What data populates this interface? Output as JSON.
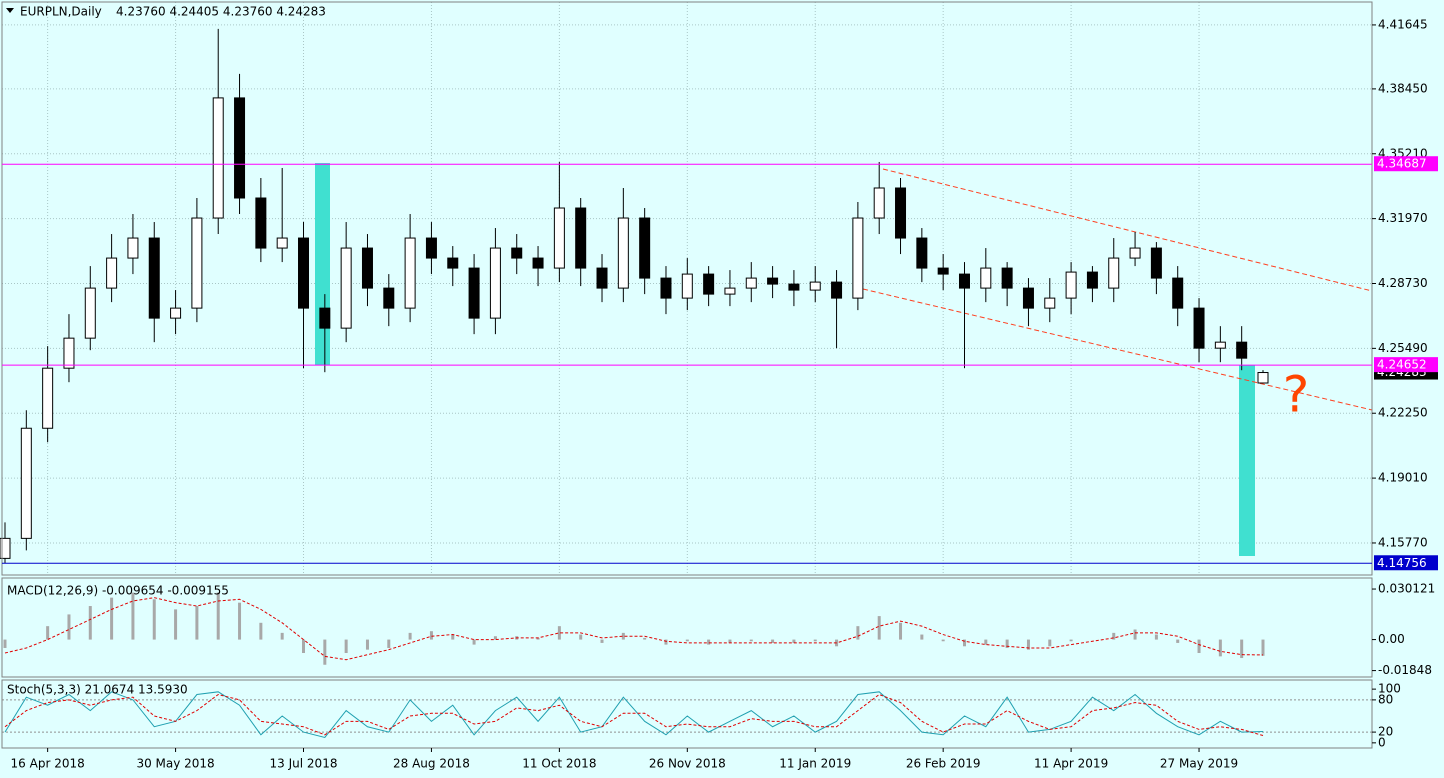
{
  "chart_data": [
    {
      "type": "candlestick",
      "title": "EURPLN,Daily",
      "subtitle": "4.23760 4.24405 4.23760 4.24283",
      "categories": [
        null,
        null,
        "16 Apr 2018",
        null,
        null,
        null,
        null,
        null,
        "30 May 2018",
        null,
        null,
        null,
        null,
        null,
        "13 Jul 2018",
        null,
        null,
        null,
        null,
        null,
        "28 Aug 2018",
        null,
        null,
        null,
        null,
        null,
        "11 Oct 2018",
        null,
        null,
        null,
        null,
        null,
        "26 Nov 2018",
        null,
        null,
        null,
        null,
        null,
        "11 Jan 2019",
        null,
        null,
        null,
        null,
        null,
        "26 Feb 2019",
        null,
        null,
        null,
        null,
        null,
        "11 Apr 2019",
        null,
        null,
        null,
        null,
        null,
        "27 May 2019",
        null,
        null,
        null
      ],
      "open": [
        4.15,
        4.16,
        4.215,
        4.245,
        4.26,
        4.285,
        4.3,
        4.31,
        4.27,
        4.275,
        4.32,
        4.38,
        4.33,
        4.305,
        4.31,
        4.275,
        4.265,
        4.305,
        4.285,
        4.275,
        4.31,
        4.3,
        4.295,
        4.27,
        4.305,
        4.3,
        4.295,
        4.325,
        4.295,
        4.285,
        4.32,
        4.29,
        4.28,
        4.292,
        4.282,
        4.285,
        4.29,
        4.287,
        4.284,
        4.288,
        4.28,
        4.32,
        4.335,
        4.31,
        4.295,
        4.292,
        4.285,
        4.295,
        4.285,
        4.275,
        4.28,
        4.293,
        4.285,
        4.3,
        4.305,
        4.29,
        4.275,
        4.255,
        4.258,
        4.2376
      ],
      "high": [
        4.168,
        4.224,
        4.256,
        4.272,
        4.296,
        4.312,
        4.322,
        4.318,
        4.284,
        4.33,
        4.4145,
        4.392,
        4.34,
        4.345,
        4.318,
        4.282,
        4.318,
        4.312,
        4.292,
        4.322,
        4.318,
        4.306,
        4.302,
        4.315,
        4.312,
        4.306,
        4.348,
        4.33,
        4.302,
        4.335,
        4.325,
        4.296,
        4.3,
        4.296,
        4.294,
        4.298,
        4.296,
        4.294,
        4.296,
        4.294,
        4.328,
        4.348,
        4.34,
        4.315,
        4.302,
        4.298,
        4.305,
        4.298,
        4.29,
        4.29,
        4.298,
        4.296,
        4.31,
        4.313,
        4.308,
        4.296,
        4.28,
        4.266,
        4.266,
        4.24405
      ],
      "low": [
        4.1475,
        4.154,
        4.208,
        4.238,
        4.254,
        4.278,
        4.292,
        4.258,
        4.262,
        4.268,
        4.312,
        4.322,
        4.298,
        4.298,
        4.245,
        4.243,
        4.258,
        4.276,
        4.266,
        4.268,
        4.292,
        4.286,
        4.262,
        4.262,
        4.292,
        4.286,
        4.288,
        4.286,
        4.278,
        4.278,
        4.282,
        4.272,
        4.274,
        4.276,
        4.276,
        4.278,
        4.28,
        4.276,
        4.278,
        4.255,
        4.274,
        4.312,
        4.302,
        4.288,
        4.284,
        4.245,
        4.278,
        4.276,
        4.266,
        4.268,
        4.272,
        4.278,
        4.278,
        4.296,
        4.282,
        4.266,
        4.248,
        4.248,
        4.244,
        4.2376
      ],
      "close": [
        4.16,
        4.215,
        4.245,
        4.26,
        4.285,
        4.3,
        4.31,
        4.27,
        4.275,
        4.32,
        4.38,
        4.33,
        4.305,
        4.31,
        4.275,
        4.265,
        4.305,
        4.285,
        4.275,
        4.31,
        4.3,
        4.295,
        4.27,
        4.305,
        4.3,
        4.295,
        4.325,
        4.295,
        4.285,
        4.32,
        4.29,
        4.28,
        4.292,
        4.282,
        4.285,
        4.29,
        4.287,
        4.284,
        4.288,
        4.28,
        4.32,
        4.335,
        4.31,
        4.295,
        4.292,
        4.285,
        4.295,
        4.285,
        4.275,
        4.28,
        4.293,
        4.285,
        4.3,
        4.305,
        4.29,
        4.275,
        4.255,
        4.258,
        4.25,
        4.24283
      ],
      "ylim": [
        4.1417,
        4.4289
      ],
      "yticks": [
        {
          "value": 4.41645,
          "label": "4.41645"
        },
        {
          "value": 4.3845,
          "label": "4.38450"
        },
        {
          "value": 4.3521,
          "label": "4.35210"
        },
        {
          "value": 4.3197,
          "label": "4.31970"
        },
        {
          "value": 4.2873,
          "label": "4.28730"
        },
        {
          "value": 4.2549,
          "label": "4.25490"
        },
        {
          "value": 4.2225,
          "label": "4.22250"
        },
        {
          "value": 4.1901,
          "label": "4.19010"
        },
        {
          "value": 4.1577,
          "label": "4.15770"
        }
      ],
      "levels": [
        {
          "price": 4.34687,
          "color": "#ff00ff"
        },
        {
          "price": 4.24652,
          "color": "#ff00ff"
        },
        {
          "price": 4.14756,
          "color": "#0000cc"
        }
      ],
      "annotation": "?",
      "grid": true,
      "up_color": "#ffffff",
      "down_color": "#000000"
    },
    {
      "type": "macd",
      "title": "MACD(12,26,9) -0.009654 -0.009155",
      "series": [
        {
          "color": "#a8a8a8",
          "values": [
            -0.005,
            0.0,
            0.008,
            0.015,
            0.02,
            0.025,
            0.028,
            0.024,
            0.018,
            0.02,
            0.028,
            0.022,
            0.01,
            0.004,
            -0.008,
            -0.015,
            -0.008,
            -0.006,
            -0.005,
            0.004,
            0.005,
            0.003,
            -0.003,
            0.002,
            0.002,
            0.001,
            0.008,
            0.003,
            -0.002,
            0.004,
            0.001,
            -0.003,
            -0.001,
            -0.003,
            -0.002,
            -0.001,
            -0.002,
            -0.002,
            -0.001,
            -0.004,
            0.008,
            0.014,
            0.01,
            0.003,
            -0.001,
            -0.004,
            -0.003,
            -0.005,
            -0.006,
            -0.004,
            -0.001,
            0.0,
            0.004,
            0.006,
            0.003,
            -0.002,
            -0.008,
            -0.01,
            -0.011,
            -0.009654
          ]
        },
        {
          "color": "#e00000",
          "values": [
            -0.008,
            -0.005,
            0.0,
            0.006,
            0.012,
            0.018,
            0.023,
            0.025,
            0.022,
            0.02,
            0.023,
            0.024,
            0.018,
            0.01,
            0.0,
            -0.01,
            -0.012,
            -0.009,
            -0.006,
            -0.002,
            0.002,
            0.003,
            0.0,
            0.0,
            0.001,
            0.001,
            0.004,
            0.004,
            0.001,
            0.002,
            0.002,
            -0.001,
            -0.002,
            -0.002,
            -0.002,
            -0.002,
            -0.002,
            -0.002,
            -0.002,
            -0.002,
            0.002,
            0.008,
            0.011,
            0.008,
            0.003,
            -0.001,
            -0.003,
            -0.004,
            -0.005,
            -0.005,
            -0.003,
            -0.001,
            0.001,
            0.004,
            0.004,
            0.002,
            -0.003,
            -0.007,
            -0.009,
            -0.009155
          ]
        }
      ],
      "ylim": [
        -0.0223,
        0.0367
      ],
      "yticks": [
        0.030121,
        {
          "value": 0,
          "label": "0.00"
        },
        -0.01848
      ]
    },
    {
      "type": "stochastic",
      "title": "Stoch(5,3,3) 21.0674 13.5930",
      "series": [
        {
          "color": "#20a0b0",
          "values": [
            20,
            85,
            70,
            90,
            60,
            95,
            80,
            30,
            40,
            90,
            95,
            70,
            15,
            50,
            20,
            10,
            60,
            30,
            20,
            80,
            40,
            70,
            15,
            60,
            85,
            40,
            85,
            20,
            30,
            85,
            40,
            15,
            50,
            20,
            40,
            60,
            30,
            50,
            20,
            40,
            90,
            95,
            60,
            20,
            15,
            50,
            30,
            85,
            20,
            25,
            40,
            85,
            60,
            90,
            55,
            30,
            15,
            40,
            20,
            21.0674
          ]
        },
        {
          "color": "#e00000",
          "values": [
            30,
            60,
            75,
            80,
            70,
            80,
            85,
            50,
            40,
            60,
            90,
            80,
            40,
            35,
            30,
            15,
            40,
            40,
            25,
            50,
            55,
            55,
            35,
            40,
            65,
            60,
            70,
            40,
            30,
            55,
            55,
            30,
            35,
            30,
            30,
            45,
            40,
            40,
            30,
            30,
            60,
            90,
            75,
            40,
            20,
            35,
            35,
            60,
            40,
            25,
            30,
            60,
            65,
            75,
            70,
            40,
            25,
            30,
            25,
            13.593
          ]
        }
      ],
      "ylim": [
        -9.6,
        117
      ],
      "yticks": [
        100,
        80,
        20,
        0
      ]
    }
  ]
}
